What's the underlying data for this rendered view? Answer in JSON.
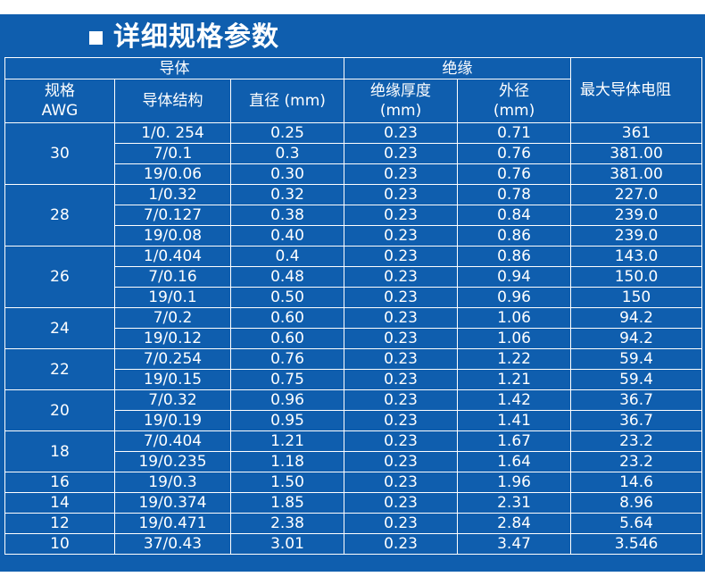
{
  "title": "详细规格参数",
  "headers": {
    "conductor_group": "导体",
    "insulation_group": "绝缘",
    "awg_line1": "规格",
    "awg_line2": "AWG",
    "structure": "导体结构",
    "diameter": "直径 (mm)",
    "thickness_line1": "绝缘厚度",
    "thickness_line2": "(mm)",
    "outer_line1": "外径",
    "outer_line2": "(mm)",
    "resistance": "最大导体电阻"
  },
  "groups": [
    {
      "awg": "30",
      "rows": [
        {
          "structure": "1/0. 254",
          "diameter": "0.25",
          "thickness": "0.23",
          "outer": "0.71",
          "resistance": "361"
        },
        {
          "structure": "7/0.1",
          "diameter": "0.3",
          "thickness": "0.23",
          "outer": "0.76",
          "resistance": "381.00"
        },
        {
          "structure": "19/0.06",
          "diameter": "0.30",
          "thickness": "0.23",
          "outer": "0.76",
          "resistance": "381.00"
        }
      ]
    },
    {
      "awg": "28",
      "rows": [
        {
          "structure": "1/0.32",
          "diameter": "0.32",
          "thickness": "0.23",
          "outer": "0.78",
          "resistance": "227.0"
        },
        {
          "structure": "7/0.127",
          "diameter": "0.38",
          "thickness": "0.23",
          "outer": "0.84",
          "resistance": "239.0"
        },
        {
          "structure": "19/0.08",
          "diameter": "0.40",
          "thickness": "0.23",
          "outer": "0.86",
          "resistance": "239.0"
        }
      ]
    },
    {
      "awg": "26",
      "rows": [
        {
          "structure": "1/0.404",
          "diameter": "0.4",
          "thickness": "0.23",
          "outer": "0.86",
          "resistance": "143.0"
        },
        {
          "structure": "7/0.16",
          "diameter": "0.48",
          "thickness": "0.23",
          "outer": "0.94",
          "resistance": "150.0"
        },
        {
          "structure": "19/0.1",
          "diameter": "0.50",
          "thickness": "0.23",
          "outer": "0.96",
          "resistance": "150"
        }
      ]
    },
    {
      "awg": "24",
      "rows": [
        {
          "structure": "7/0.2",
          "diameter": "0.60",
          "thickness": "0.23",
          "outer": "1.06",
          "resistance": "94.2"
        },
        {
          "structure": "19/0.12",
          "diameter": "0.60",
          "thickness": "0.23",
          "outer": "1.06",
          "resistance": "94.2"
        }
      ]
    },
    {
      "awg": "22",
      "rows": [
        {
          "structure": "7/0.254",
          "diameter": "0.76",
          "thickness": "0.23",
          "outer": "1.22",
          "resistance": "59.4"
        },
        {
          "structure": "19/0.15",
          "diameter": "0.75",
          "thickness": "0.23",
          "outer": "1.21",
          "resistance": "59.4"
        }
      ]
    },
    {
      "awg": "20",
      "rows": [
        {
          "structure": "7/0.32",
          "diameter": "0.96",
          "thickness": "0.23",
          "outer": "1.42",
          "resistance": "36.7"
        },
        {
          "structure": "19/0.19",
          "diameter": "0.95",
          "thickness": "0.23",
          "outer": "1.41",
          "resistance": "36.7"
        }
      ]
    },
    {
      "awg": "18",
      "rows": [
        {
          "structure": "7/0.404",
          "diameter": "1.21",
          "thickness": "0.23",
          "outer": "1.67",
          "resistance": "23.2"
        },
        {
          "structure": "19/0.235",
          "diameter": "1.18",
          "thickness": "0.23",
          "outer": "1.64",
          "resistance": "23.2"
        }
      ]
    },
    {
      "awg": "16",
      "rows": [
        {
          "structure": "19/0.3",
          "diameter": "1.50",
          "thickness": "0.23",
          "outer": "1.96",
          "resistance": "14.6"
        }
      ]
    },
    {
      "awg": "14",
      "rows": [
        {
          "structure": "19/0.374",
          "diameter": "1.85",
          "thickness": "0.23",
          "outer": "2.31",
          "resistance": "8.96"
        }
      ]
    },
    {
      "awg": "12",
      "rows": [
        {
          "structure": "19/0.471",
          "diameter": "2.38",
          "thickness": "0.23",
          "outer": "2.84",
          "resistance": "5.64"
        }
      ]
    },
    {
      "awg": "10",
      "rows": [
        {
          "structure": "37/0.43",
          "diameter": "3.01",
          "thickness": "0.23",
          "outer": "3.47",
          "resistance": "3.546"
        }
      ]
    }
  ]
}
